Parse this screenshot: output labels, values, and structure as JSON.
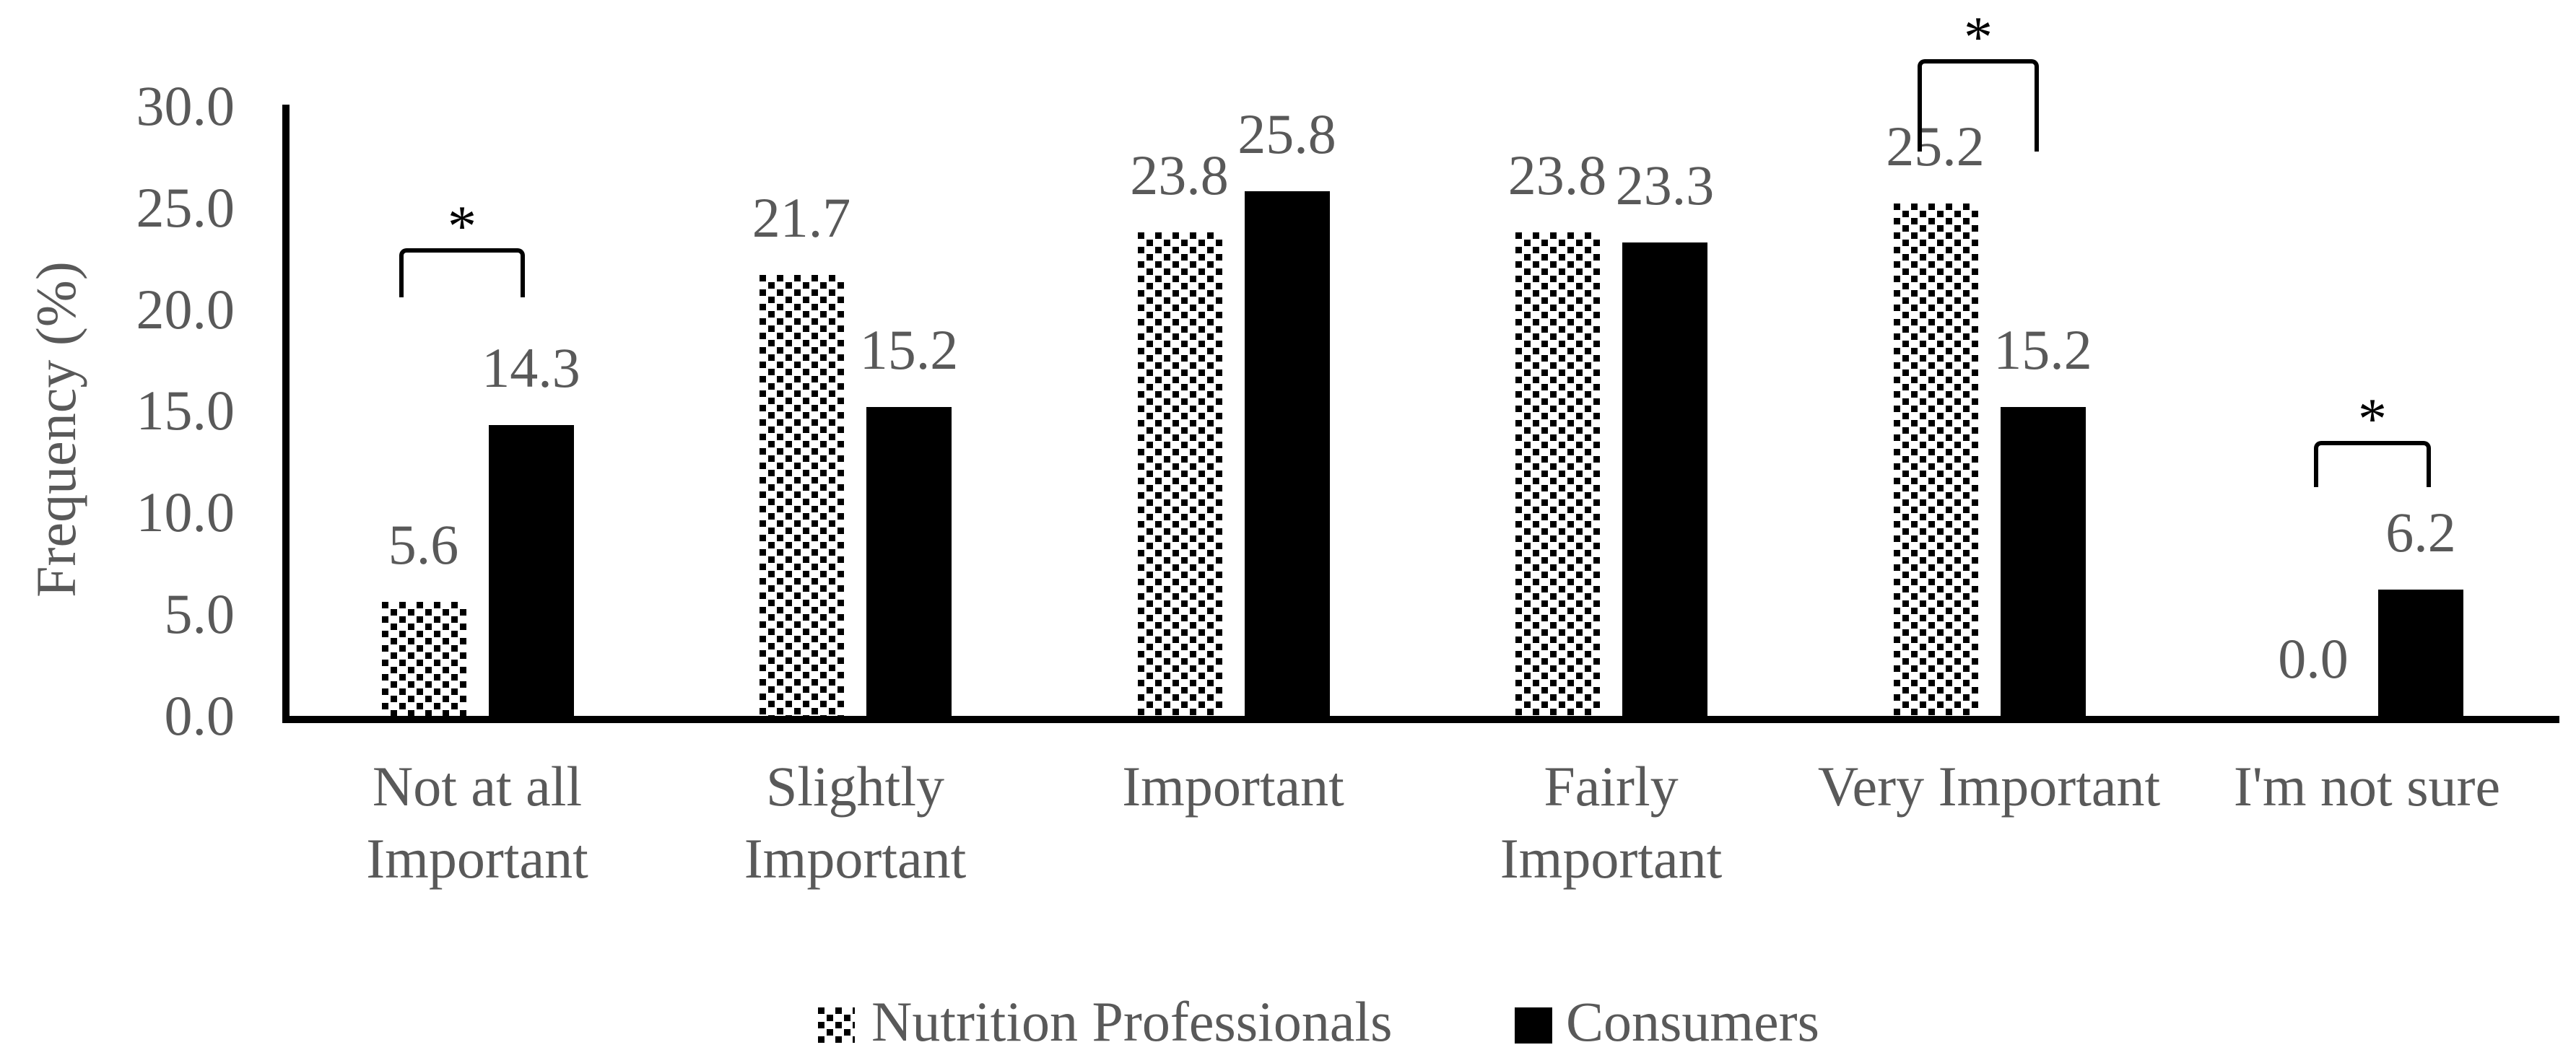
{
  "y_axis": {
    "label": "Frequency (%)",
    "ticks": [
      "0.0",
      "5.0",
      "10.0",
      "15.0",
      "20.0",
      "25.0",
      "30.0"
    ],
    "min": 0,
    "max": 30,
    "tick_step": 5
  },
  "chart_data": {
    "type": "bar",
    "title": "",
    "xlabel": "",
    "ylabel": "Frequency (%)",
    "ylim": [
      0,
      30
    ],
    "grid": false,
    "legend_position": "bottom",
    "categories": [
      "Not at all Important",
      "Slightly Important",
      "Important",
      "Fairly Important",
      "Very Important",
      "I'm not sure"
    ],
    "category_lines": [
      [
        "Not at all",
        "Important"
      ],
      [
        "Slightly",
        "Important"
      ],
      [
        "Important"
      ],
      [
        "Fairly",
        "Important"
      ],
      [
        "Very Important"
      ],
      [
        "I'm not sure"
      ]
    ],
    "series": [
      {
        "name": "Nutrition Professionals",
        "fill": "dotted-pattern",
        "values": [
          5.6,
          21.7,
          23.8,
          23.8,
          25.2,
          0.0
        ]
      },
      {
        "name": "Consumers",
        "fill": "solid-black",
        "values": [
          14.3,
          15.2,
          25.8,
          23.3,
          15.2,
          6.2
        ]
      }
    ],
    "value_labels": [
      [
        "5.6",
        "21.7",
        "23.8",
        "23.8",
        "25.2",
        "0.0"
      ],
      [
        "14.3",
        "15.2",
        "25.8",
        "23.3",
        "15.2",
        "6.2"
      ]
    ],
    "annotations": [
      {
        "type": "significance-bracket",
        "category": "Not at all Important",
        "symbol": "*"
      },
      {
        "type": "significance-bracket",
        "category": "Very Important",
        "symbol": "*"
      },
      {
        "type": "significance-bracket",
        "category": "I'm not sure",
        "symbol": "*"
      }
    ]
  },
  "legend": {
    "items": [
      {
        "label": "Nutrition Professionals",
        "swatch": "dotted-pattern"
      },
      {
        "label": "Consumers",
        "swatch": "solid-black"
      }
    ]
  },
  "colors": {
    "bar_black": "#000000",
    "pattern_dot": "#000000",
    "pattern_bg": "#ffffff",
    "text": "#595959",
    "axis": "#000000"
  }
}
